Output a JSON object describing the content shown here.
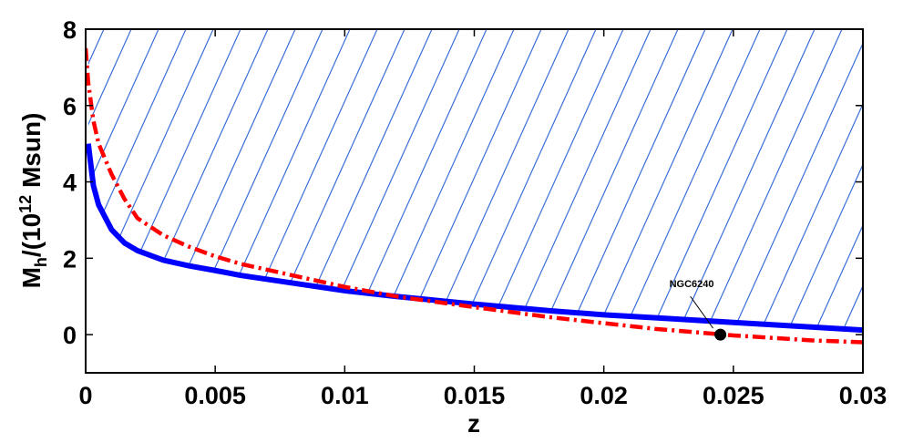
{
  "chart_data": {
    "type": "line",
    "title": "",
    "xlabel": "z",
    "ylabel_main": "M",
    "ylabel_sub": "h",
    "ylabel_mid": "/(10",
    "ylabel_sup": "12",
    "ylabel_end": " Msun)",
    "xlim": [
      0,
      0.03
    ],
    "ylim": [
      -1,
      8
    ],
    "xticks": [
      0,
      0.005,
      0.01,
      0.015,
      0.02,
      0.025,
      0.03
    ],
    "xtick_labels": [
      "0",
      "0.005",
      "0.01",
      "0.015",
      "0.02",
      "0.025",
      "0.03"
    ],
    "yticks": [
      0,
      2,
      4,
      6,
      8
    ],
    "ytick_labels": [
      "0",
      "2",
      "4",
      "6",
      "8"
    ],
    "grid": false,
    "hatched_region": {
      "description_color": "#3a6fd8",
      "bounded_below_by": "blue-solid"
    },
    "series": [
      {
        "style": "solid",
        "color": "#0000ff",
        "x": [
          0.0001,
          0.0003,
          0.0005,
          0.001,
          0.0015,
          0.002,
          0.003,
          0.004,
          0.005,
          0.006,
          0.008,
          0.01,
          0.012,
          0.015,
          0.018,
          0.02,
          0.022,
          0.025,
          0.028,
          0.03
        ],
        "y": [
          5.0,
          3.9,
          3.4,
          2.75,
          2.4,
          2.2,
          1.95,
          1.8,
          1.68,
          1.55,
          1.35,
          1.15,
          1.0,
          0.8,
          0.62,
          0.52,
          0.44,
          0.32,
          0.2,
          0.12
        ]
      },
      {
        "style": "dash-dot",
        "color": "#ff0000",
        "x": [
          0.0,
          0.0001,
          0.0003,
          0.0005,
          0.001,
          0.0015,
          0.002,
          0.003,
          0.004,
          0.005,
          0.006,
          0.008,
          0.01,
          0.012,
          0.015,
          0.018,
          0.02,
          0.022,
          0.025,
          0.028,
          0.03
        ],
        "y": [
          7.5,
          6.6,
          5.6,
          5.0,
          4.2,
          3.55,
          3.05,
          2.6,
          2.3,
          2.05,
          1.85,
          1.55,
          1.25,
          1.0,
          0.72,
          0.45,
          0.3,
          0.15,
          -0.02,
          -0.15,
          -0.2
        ]
      }
    ],
    "points": [
      {
        "label": "NGC6240",
        "x": 0.0245,
        "y": 0.0,
        "color": "#000000"
      }
    ]
  }
}
